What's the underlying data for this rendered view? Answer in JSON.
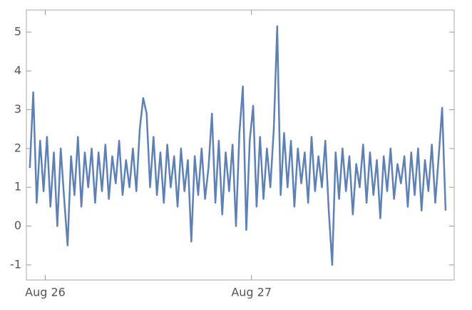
{
  "chart_data": {
    "type": "line",
    "color": "#5e81b5",
    "x": [
      -1.8,
      -1.4,
      -1,
      -0.6,
      -0.2,
      0.2,
      0.6,
      1,
      1.4,
      1.8,
      2.2,
      2.6,
      3,
      3.4,
      3.8,
      4.2,
      4.6,
      5,
      5.4,
      5.8,
      6.2,
      6.6,
      7,
      7.4,
      7.8,
      8.2,
      8.6,
      9,
      9.4,
      9.8,
      10.2,
      10.6,
      11,
      11.4,
      11.8,
      12.2,
      12.6,
      13,
      13.4,
      13.8,
      14.2,
      14.6,
      15,
      15.4,
      15.8,
      16.2,
      16.6,
      17,
      17.4,
      17.8,
      18.2,
      18.6,
      19,
      19.4,
      19.8,
      20.2,
      20.6,
      21,
      21.4,
      21.8,
      22.2,
      22.6,
      23,
      23.4,
      23.8,
      24.2,
      24.6,
      25,
      25.4,
      25.8,
      26.2,
      26.6,
      27,
      27.4,
      27.8,
      28.2,
      28.6,
      29,
      29.4,
      29.8,
      30.2,
      30.6,
      31,
      31.4,
      31.8,
      32.2,
      32.6,
      33,
      33.4,
      33.8,
      34.2,
      34.6,
      35,
      35.4,
      35.8,
      36.2,
      36.6,
      37,
      37.4,
      37.8,
      38.2,
      38.6,
      39,
      39.4,
      39.8,
      40.2,
      40.6,
      41,
      41.4,
      41.8,
      42.2,
      42.6,
      43,
      43.4,
      43.8,
      44.2,
      44.6,
      45,
      45.4,
      45.8,
      46.2,
      46.6
    ],
    "values": [
      1.5,
      3.45,
      0.6,
      2.2,
      0.9,
      2.3,
      0.5,
      1.9,
      0.0,
      2.0,
      0.7,
      -0.5,
      1.8,
      0.8,
      2.3,
      0.5,
      1.9,
      1.0,
      2.0,
      0.6,
      1.9,
      0.9,
      2.1,
      0.7,
      1.8,
      1.1,
      2.2,
      0.8,
      1.7,
      1.0,
      2.0,
      0.9,
      2.5,
      3.3,
      2.9,
      1.0,
      2.3,
      0.8,
      1.9,
      0.6,
      2.1,
      1.0,
      1.8,
      0.5,
      2.0,
      0.9,
      1.7,
      -0.4,
      1.8,
      0.8,
      2.0,
      0.7,
      1.5,
      2.9,
      0.6,
      2.2,
      0.3,
      1.9,
      0.9,
      2.1,
      0.0,
      2.4,
      3.6,
      -0.1,
      2.2,
      3.1,
      0.5,
      2.3,
      0.7,
      2.0,
      1.0,
      2.5,
      5.15,
      0.8,
      2.4,
      1.0,
      2.2,
      0.5,
      2.0,
      1.1,
      1.9,
      0.6,
      2.3,
      0.9,
      1.8,
      1.0,
      2.2,
      0.4,
      -1.0,
      1.9,
      0.7,
      2.0,
      0.9,
      1.8,
      0.3,
      1.6,
      1.0,
      2.1,
      0.6,
      1.9,
      0.8,
      1.7,
      0.2,
      1.8,
      0.9,
      2.0,
      0.7,
      1.6,
      1.1,
      1.8,
      0.5,
      1.9,
      0.8,
      2.0,
      0.4,
      1.7,
      0.9,
      2.1,
      0.6,
      1.8,
      3.05,
      0.4
    ],
    "xlim": [
      -2.2,
      47.6
    ],
    "xticks": [
      {
        "value": 0,
        "label": "Aug 26"
      },
      {
        "value": 24,
        "label": "Aug 27"
      }
    ],
    "ylim": [
      -1.39,
      5.57
    ],
    "yticks": [
      -1,
      0,
      1,
      2,
      3,
      4,
      5
    ]
  }
}
